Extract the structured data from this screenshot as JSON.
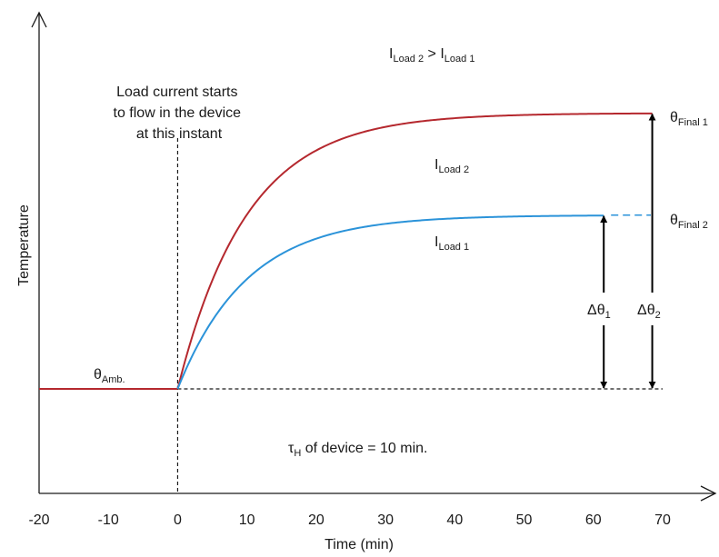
{
  "chart_data": {
    "type": "line",
    "title": "",
    "xlabel": "Time (min)",
    "ylabel": "Temperature",
    "xlim": [
      -20,
      70
    ],
    "x_ticks": [
      "-20",
      "-10",
      "0",
      "10",
      "20",
      "30",
      "40",
      "50",
      "60",
      "70"
    ],
    "load_start_time": 0,
    "time_constant_min": 10,
    "series": [
      {
        "name": "I",
        "name_sub": "Load 2",
        "color": "#b5282e",
        "ambient_level": 0,
        "final_level": 1.0
      },
      {
        "name": "I",
        "name_sub": "Load 1",
        "color": "#2b93d9",
        "ambient_level": 0,
        "final_level": 0.63
      }
    ],
    "annotations": {
      "compare_main": "I",
      "compare_sub1": "Load 2",
      "compare_op": " > I",
      "compare_sub2": "Load 1",
      "start_note": [
        "Load current starts",
        "to flow in the device",
        "at this instant"
      ],
      "ambient_main": "θ",
      "ambient_sub": "Amb.",
      "final1_main": "θ",
      "final1_sub": "Final 1",
      "final2_main": "θ",
      "final2_sub": "Final 2",
      "delta1_main": "Δθ",
      "delta1_sub": "1",
      "delta2_main": "Δθ",
      "delta2_sub": "2",
      "tau_main": "τ",
      "tau_sub": "H",
      "tau_rest": " of device = 10 min."
    }
  }
}
